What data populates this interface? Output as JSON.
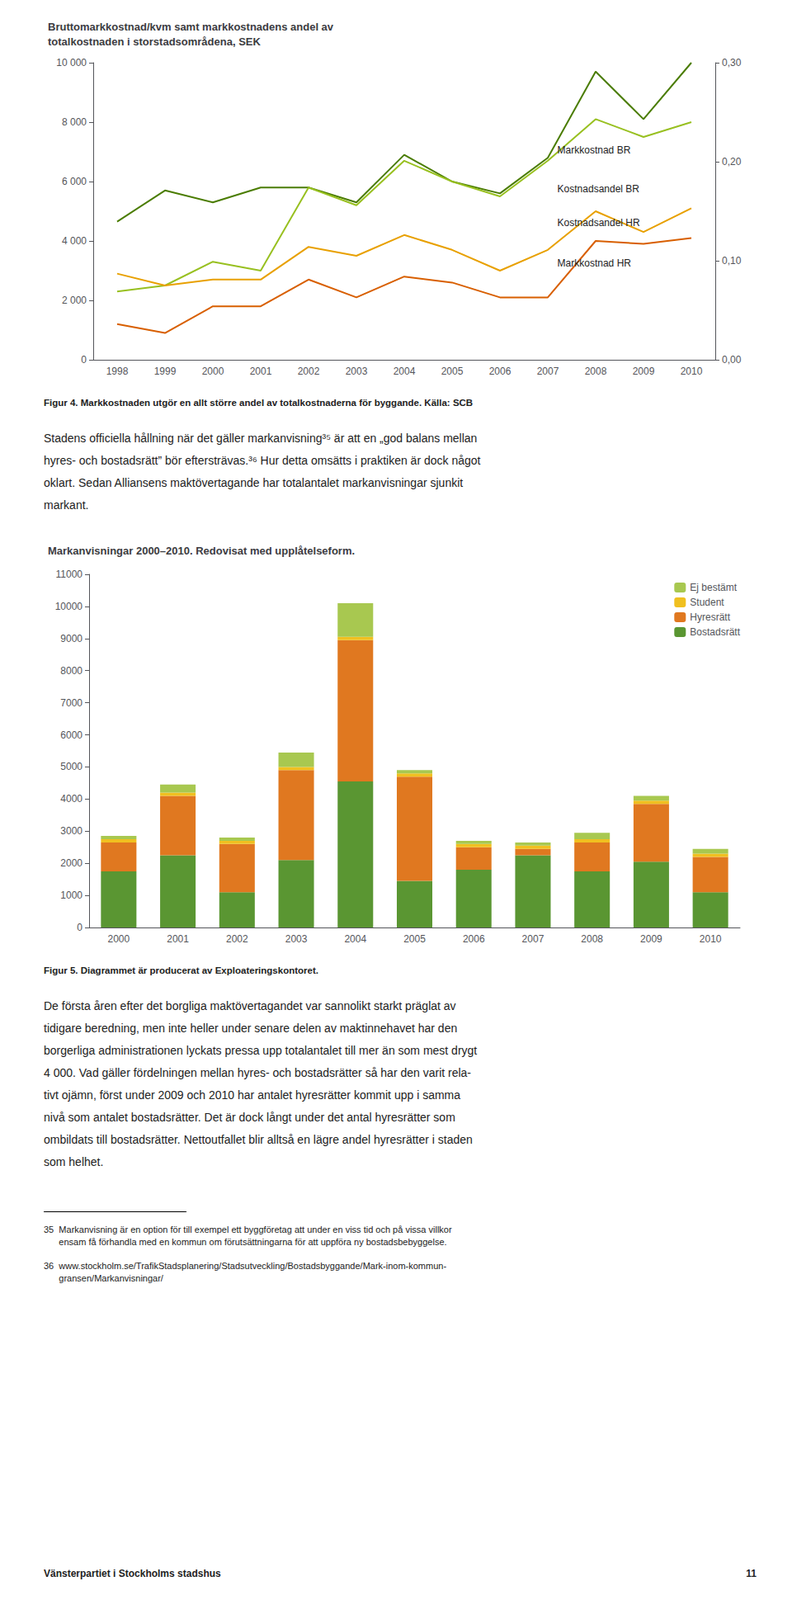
{
  "chart_data": [
    {
      "type": "line",
      "title": "Bruttomarkkostnad/kvm samt markkostnadens andel av\ntotalkostnaden i storstadsområdena, SEK",
      "x": [
        1998,
        1999,
        2000,
        2001,
        2002,
        2003,
        2004,
        2005,
        2006,
        2007,
        2008,
        2009,
        2010
      ],
      "xlim": [
        1997.5,
        2010.5
      ],
      "xticks": [
        1998,
        1999,
        2000,
        2001,
        2002,
        2003,
        2004,
        2005,
        2006,
        2007,
        2008,
        2009,
        2010
      ],
      "ylim": [
        0,
        10000
      ],
      "yticks": [
        0,
        {
          "value": 2000,
          "label": "2 000"
        },
        {
          "value": 4000,
          "label": "4 000"
        },
        {
          "value": 6000,
          "label": "6 000"
        },
        {
          "value": 8000,
          "label": "8 000"
        },
        {
          "value": 10000,
          "label": "10 000"
        }
      ],
      "y2lim": [
        0.0,
        0.3
      ],
      "y2ticks": [
        {
          "value": 0.0,
          "label": "0,00"
        },
        {
          "value": 0.1,
          "label": "0,10"
        },
        {
          "value": 0.2,
          "label": "0,20"
        },
        {
          "value": 0.3,
          "label": "0,30"
        }
      ],
      "grid": false,
      "series": [
        {
          "name": "Markkostnad BR",
          "color": "#4a7c00",
          "values": [
            4650,
            5700,
            5300,
            5800,
            5800,
            5300,
            6900,
            6000,
            5600,
            6800,
            9700,
            8100,
            10000
          ]
        },
        {
          "name": "Kostnadsandel BR",
          "color": "#98c020",
          "values": [
            2300,
            2500,
            3300,
            3000,
            5800,
            5200,
            6700,
            6000,
            5500,
            6700,
            8100,
            7500,
            8000
          ]
        },
        {
          "name": "Kostnadsandel HR",
          "color": "#e8a000",
          "values": [
            2900,
            2500,
            2700,
            2700,
            3800,
            3500,
            4200,
            3700,
            3000,
            3700,
            5000,
            4300,
            5100
          ]
        },
        {
          "name": "Markkostnad HR",
          "color": "#d85f00",
          "values": [
            1200,
            900,
            1800,
            1800,
            2700,
            2100,
            2800,
            2600,
            2100,
            2100,
            4000,
            3900,
            4100
          ]
        }
      ],
      "annotations": [
        {
          "text": "Markkostnad BR",
          "x": 2007.2,
          "y": 6800
        },
        {
          "text": "Kostnadsandel BR",
          "x": 2007.2,
          "y": 5500
        },
        {
          "text": "Kostnadsandel HR",
          "x": 2007.2,
          "y": 4350
        },
        {
          "text": "Markkostnad HR",
          "x": 2007.2,
          "y": 3000
        }
      ]
    },
    {
      "type": "bar",
      "title": "Markanvisningar 2000–2010. Redovisat med upplåtelseform.",
      "categories": [
        "2000",
        "2001",
        "2002",
        "2003",
        "2004",
        "2005",
        "2006",
        "2007",
        "2008",
        "2009",
        "2010"
      ],
      "stacked": true,
      "ylim": [
        0,
        11000
      ],
      "yticks": [
        0,
        1000,
        2000,
        3000,
        4000,
        5000,
        6000,
        7000,
        8000,
        9000,
        10000,
        11000
      ],
      "grid": false,
      "legend": "upper right",
      "series": [
        {
          "name": "Bostadsrätt",
          "color": "#5a9632",
          "values": [
            1750,
            2250,
            1100,
            2100,
            4550,
            1450,
            1800,
            2250,
            1750,
            2050,
            1100
          ]
        },
        {
          "name": "Hyresrätt",
          "color": "#e07820",
          "values": [
            900,
            1850,
            1500,
            2800,
            4400,
            3250,
            700,
            200,
            900,
            1800,
            1100
          ]
        },
        {
          "name": "Student",
          "color": "#f0c020",
          "values": [
            100,
            100,
            100,
            100,
            100,
            100,
            100,
            100,
            100,
            100,
            100
          ]
        },
        {
          "name": "Ej bestämt",
          "color": "#a8c850",
          "values": [
            100,
            250,
            100,
            450,
            1050,
            100,
            100,
            100,
            200,
            150,
            150
          ]
        }
      ]
    }
  ],
  "page": {
    "captions": [
      "Figur 4. Markkostnaden utgör en allt större andel av totalkostnaderna för byggande. Källa: SCB",
      "Figur 5. Diagrammet är producerat av Exploateringskontoret."
    ],
    "paragraphs": [
      [
        "Stadens officiella hållning när det gäller markanvisning³⁵ är att en „god balans mellan",
        "hyres- och bostadsrätt” bör eftersträvas.³⁶ Hur detta omsätts i praktiken är dock något",
        "oklart. Sedan Alliansens maktövertagande har totalantalet markanvisningar sjunkit",
        "markant."
      ],
      [
        "De första åren efter det borgliga maktövertagandet var sannolikt starkt präglat av",
        "tidigare beredning, men inte heller under senare delen av maktinnehavet har den",
        "borgerliga administrationen lyckats pressa upp totalantalet till mer än som mest drygt",
        "4 000. Vad gäller fördelningen mellan hyres- och bostadsrätter så har den varit rela-",
        "tivt ojämn, först under 2009 och 2010 har antalet hyresrätter kommit upp i samma",
        "nivå som antalet bostadsrätter. Det är dock långt under det antal hyresrätter som",
        "ombildats till bostadsrätter. Nettoutfallet blir alltså en lägre andel hyresrätter i staden",
        "som helhet."
      ]
    ],
    "footnotes": [
      "35  Markanvisning är en option för till exempel ett byggföretag att under en viss tid och på vissa villkor\n      ensam få förhandla med en kommun om förutsättningarna för att uppföra ny bostadsbebyggelse.",
      "36  www.stockholm.se/TrafikStadsplanering/Stadsutveckling/Bostadsbyggande/Mark-inom-kommun-\n      gransen/Markanvisningar/"
    ],
    "footer": "Vänsterpartiet i Stockholms stadshus",
    "page_number": "11"
  }
}
